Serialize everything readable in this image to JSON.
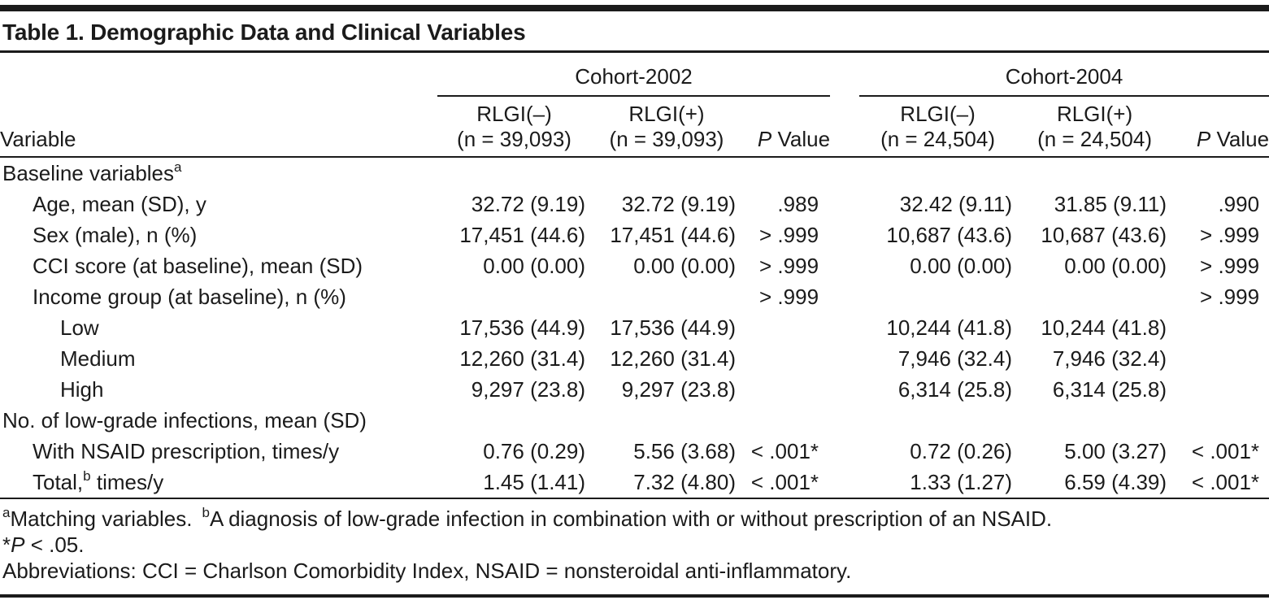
{
  "title": "Table 1. Demographic Data and Clinical Variables",
  "header": {
    "variable_label": "Variable",
    "groups": [
      {
        "label": "Cohort-2002",
        "cols": [
          {
            "line1": "RLGI(–)",
            "line2": "(n = 39,093)"
          },
          {
            "line1": "RLGI(+)",
            "line2": "(n = 39,093)"
          }
        ],
        "pvalue": {
          "p": "P",
          "rest": " Value"
        }
      },
      {
        "label": "Cohort-2004",
        "cols": [
          {
            "line1": "RLGI(–)",
            "line2": "(n = 24,504)"
          },
          {
            "line1": "RLGI(+)",
            "line2": "(n = 24,504)"
          }
        ],
        "pvalue": {
          "p": "P",
          "rest": " Value"
        }
      }
    ]
  },
  "rows": [
    {
      "indent": 0,
      "label": {
        "pre": "Baseline variables",
        "sup": "a",
        "post": ""
      },
      "values": [
        "",
        "",
        "",
        "",
        "",
        ""
      ]
    },
    {
      "indent": 1,
      "label": {
        "pre": "Age, mean (SD), y",
        "sup": "",
        "post": ""
      },
      "values": [
        "32.72 (9.19)",
        "32.72 (9.19)",
        ".989",
        "32.42 (9.11)",
        "31.85 (9.11)",
        ".990"
      ]
    },
    {
      "indent": 1,
      "label": {
        "pre": "Sex (male), n (%)",
        "sup": "",
        "post": ""
      },
      "values": [
        "17,451 (44.6)",
        "17,451 (44.6)",
        "> .999",
        "10,687 (43.6)",
        "10,687 (43.6)",
        "> .999"
      ]
    },
    {
      "indent": 1,
      "label": {
        "pre": "CCI score (at baseline), mean (SD)",
        "sup": "",
        "post": ""
      },
      "values": [
        "0.00 (0.00)",
        "0.00 (0.00)",
        "> .999",
        "0.00 (0.00)",
        "0.00 (0.00)",
        "> .999"
      ]
    },
    {
      "indent": 1,
      "label": {
        "pre": "Income group (at baseline), n (%)",
        "sup": "",
        "post": ""
      },
      "values": [
        "",
        "",
        "> .999",
        "",
        "",
        "> .999"
      ]
    },
    {
      "indent": 2,
      "label": {
        "pre": "Low",
        "sup": "",
        "post": ""
      },
      "values": [
        "17,536 (44.9)",
        "17,536 (44.9)",
        "",
        "10,244 (41.8)",
        "10,244 (41.8)",
        ""
      ]
    },
    {
      "indent": 2,
      "label": {
        "pre": "Medium",
        "sup": "",
        "post": ""
      },
      "values": [
        "12,260 (31.4)",
        "12,260 (31.4)",
        "",
        "7,946 (32.4)",
        "7,946 (32.4)",
        ""
      ]
    },
    {
      "indent": 2,
      "label": {
        "pre": "High",
        "sup": "",
        "post": ""
      },
      "values": [
        "9,297 (23.8)",
        "9,297 (23.8)",
        "",
        "6,314 (25.8)",
        "6,314 (25.8)",
        ""
      ]
    },
    {
      "indent": 0,
      "label": {
        "pre": "No. of low-grade infections, mean (SD)",
        "sup": "",
        "post": ""
      },
      "values": [
        "",
        "",
        "",
        "",
        "",
        ""
      ]
    },
    {
      "indent": 1,
      "label": {
        "pre": "With NSAID prescription, times/y",
        "sup": "",
        "post": ""
      },
      "values": [
        "0.76 (0.29)",
        "5.56 (3.68)",
        "< .001*",
        "0.72 (0.26)",
        "5.00 (3.27)",
        "< .001*"
      ]
    },
    {
      "indent": 1,
      "label": {
        "pre": "Total,",
        "sup": "b",
        "post": " times/y"
      },
      "values": [
        "1.45 (1.41)",
        "7.32 (4.80)",
        "< .001*",
        "1.33 (1.27)",
        "6.59 (4.39)",
        "< .001*"
      ]
    }
  ],
  "footnotes": {
    "line1": {
      "sup_a": "a",
      "text_a": "Matching variables.",
      "sup_b": "b",
      "text_b": "A diagnosis of low-grade infection in combination with or without prescription of an NSAID."
    },
    "line2": {
      "pre": "*",
      "italic": "P",
      "post": " < .05."
    },
    "line3": "Abbreviations: CCI = Charlson Comorbidity Index, NSAID = nonsteroidal anti-inflammatory."
  }
}
